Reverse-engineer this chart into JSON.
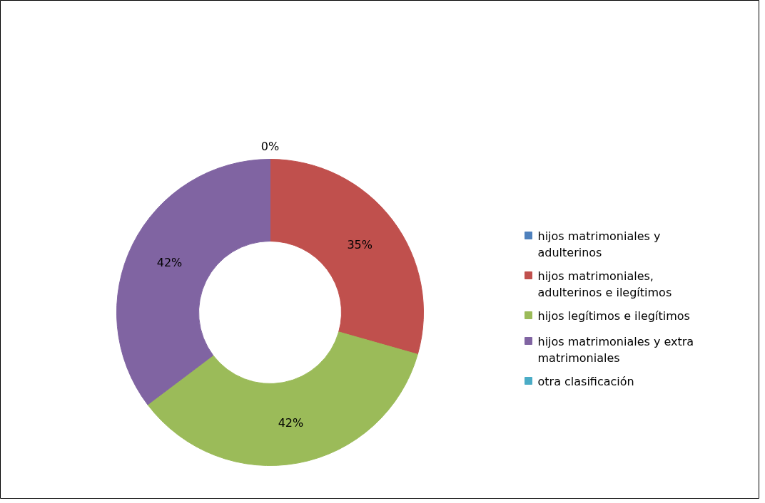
{
  "chart_data": {
    "type": "donut",
    "categories": [
      "hijos matrimoniales y adulterinos",
      " hijos matrimoniales, adulterinos  e ilegítimos",
      " hijos legítimos e ilegítimos",
      "hijos matrimoniales y extra matrimoniales",
      "otra clasificación"
    ],
    "values": [
      0,
      35,
      42,
      42,
      0
    ],
    "colors": [
      "#4f81bd",
      "#c0504d",
      "#9bbb59",
      "#8064a2",
      "#4bacc6"
    ],
    "value_labels": [
      "0%",
      "35%",
      "42%",
      "42%",
      null
    ],
    "legend": "right"
  }
}
